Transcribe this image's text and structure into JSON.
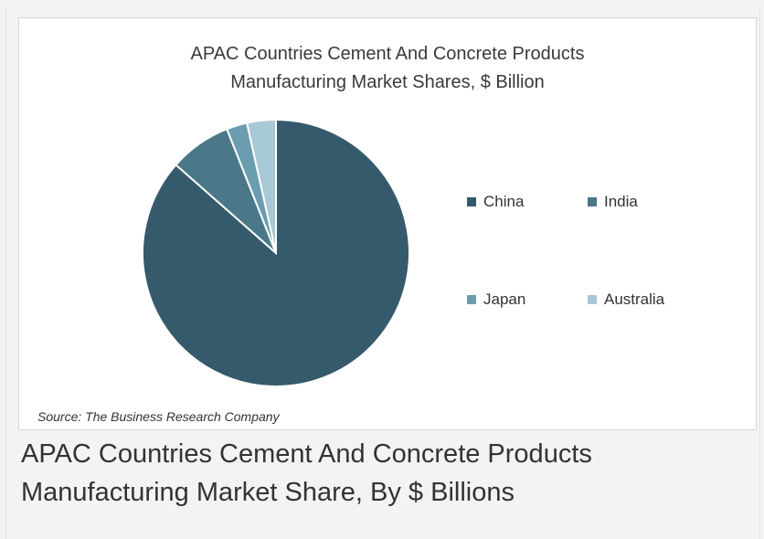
{
  "chart_data": {
    "type": "pie",
    "title_lines": [
      "APAC Countries Cement And Concrete Products",
      "Manufacturing Market Shares, $ Billion"
    ],
    "categories": [
      "China",
      "India",
      "Japan",
      "Australia"
    ],
    "values": [
      86.5,
      7.5,
      2.5,
      3.5
    ],
    "colors": [
      "#355a6b",
      "#4a7889",
      "#6b9db0",
      "#a7c8d5"
    ],
    "legend_position": "right",
    "source": "Source: The Business Research Company"
  },
  "caption_lines": [
    "APAC Countries Cement And Concrete Products",
    "Manufacturing Market Share, By $ Billions"
  ]
}
